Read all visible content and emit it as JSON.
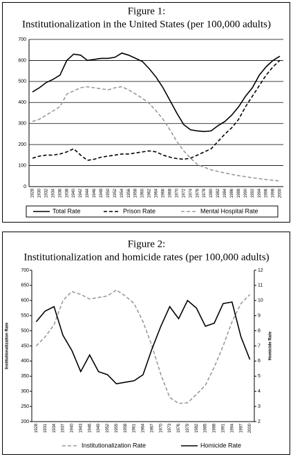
{
  "chart_data": [
    {
      "type": "line",
      "title": "Figure 1:",
      "subtitle": "Institutionalization in the United States (per 100,000 adults)",
      "categories": [
        "1928",
        "1930",
        "1932",
        "1934",
        "1936",
        "1938",
        "1940",
        "1942",
        "1944",
        "1946",
        "1948",
        "1950",
        "1952",
        "1954",
        "1956",
        "1958",
        "1960",
        "1962",
        "1964",
        "1966",
        "1968",
        "1970",
        "1972",
        "1974",
        "1976",
        "1978",
        "1980",
        "1982",
        "1984",
        "1986",
        "1988",
        "1990",
        "1992",
        "1994",
        "1996",
        "1998",
        "2000"
      ],
      "series": [
        {
          "name": "Total Rate",
          "color": "#000000",
          "dash": false,
          "values": [
            450,
            470,
            495,
            510,
            530,
            600,
            630,
            625,
            600,
            605,
            610,
            610,
            615,
            635,
            625,
            610,
            595,
            560,
            520,
            470,
            410,
            350,
            295,
            270,
            265,
            262,
            265,
            290,
            310,
            340,
            380,
            430,
            470,
            530,
            570,
            600,
            620
          ]
        },
        {
          "name": "Prison Rate",
          "color": "#000000",
          "dash": true,
          "values": [
            135,
            145,
            150,
            150,
            155,
            165,
            180,
            150,
            125,
            130,
            140,
            145,
            150,
            155,
            155,
            160,
            165,
            170,
            165,
            150,
            140,
            133,
            130,
            135,
            150,
            165,
            180,
            215,
            250,
            280,
            320,
            380,
            430,
            480,
            530,
            570,
            600
          ]
        },
        {
          "name": "Mental Hospital Rate",
          "color": "#999999",
          "dash": true,
          "values": [
            310,
            320,
            340,
            360,
            380,
            440,
            455,
            470,
            475,
            470,
            465,
            460,
            470,
            475,
            460,
            440,
            420,
            395,
            360,
            320,
            270,
            215,
            170,
            135,
            105,
            92,
            80,
            72,
            65,
            58,
            52,
            47,
            42,
            38,
            34,
            30,
            27
          ]
        }
      ],
      "ylim": [
        0,
        700
      ],
      "yticks": [
        0,
        100,
        200,
        300,
        400,
        500,
        600,
        700
      ],
      "grid": true,
      "legend": "bottom"
    },
    {
      "type": "line",
      "title": "Figure 2:",
      "subtitle": "Institutionalization and homicide rates (per 100,000 adults)",
      "ylabel": "Institutionalization Rate",
      "y2label": "Homicide Rate",
      "categories": [
        "1928",
        "1931",
        "1934",
        "1937",
        "1940",
        "1943",
        "1946",
        "1949",
        "1952",
        "1955",
        "1958",
        "1961",
        "1964",
        "1967",
        "1970",
        "1973",
        "1976",
        "1979",
        "1982",
        "1985",
        "1988",
        "1991",
        "1994",
        "1997",
        "2000"
      ],
      "series": [
        {
          "name": "Institutionalization Rate",
          "color": "#999999",
          "dash": true,
          "values": [
            450,
            480,
            520,
            600,
            630,
            620,
            605,
            610,
            615,
            635,
            615,
            590,
            530,
            450,
            355,
            280,
            260,
            262,
            290,
            320,
            380,
            450,
            530,
            590,
            620
          ]
        },
        {
          "name": "Homicide Rate",
          "color": "#000000",
          "dash": false,
          "axis": "y2",
          "values": [
            8.6,
            9.3,
            9.6,
            7.7,
            6.7,
            5.3,
            6.4,
            5.3,
            5.1,
            4.5,
            4.6,
            4.7,
            5.1,
            6.8,
            8.3,
            9.6,
            8.8,
            10.0,
            9.5,
            8.3,
            8.5,
            9.8,
            9.9,
            7.6,
            6.1
          ]
        }
      ],
      "ylim": [
        200,
        700
      ],
      "yticks": [
        200,
        250,
        300,
        350,
        400,
        450,
        500,
        550,
        600,
        650,
        700
      ],
      "y2lim": [
        2,
        12
      ],
      "y2ticks": [
        2,
        3,
        4,
        5,
        6,
        7,
        8,
        9,
        10,
        11,
        12
      ],
      "grid": false,
      "legend": "bottom"
    }
  ]
}
